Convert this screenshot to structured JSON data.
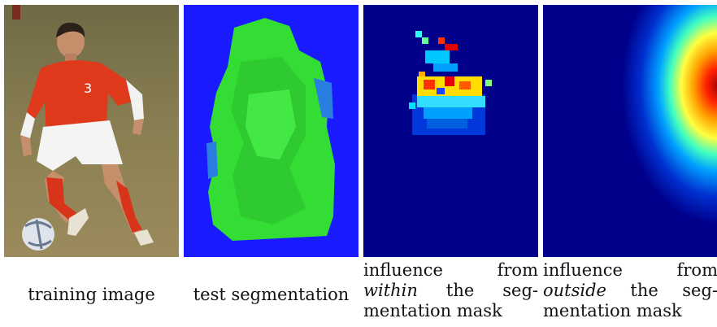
{
  "panels": [
    {
      "name": "training-image",
      "caption": "training image"
    },
    {
      "name": "test-segmentation",
      "caption": "test segmentation"
    },
    {
      "name": "influence-within",
      "caption": {
        "l1a": "influence",
        "l1b": "from",
        "l2em": "within",
        "l2a": "the",
        "l2b": "seg-",
        "l3": "mentation mask"
      }
    },
    {
      "name": "influence-outside",
      "caption": {
        "l1a": "influence",
        "l1b": "from",
        "l2em": "outside",
        "l2a": "the",
        "l2b": "seg-",
        "l3": "mentation mask"
      }
    }
  ],
  "colors": {
    "seg_background": "#1a1aff",
    "seg_foreground": "#33dd33",
    "heat_background": "#00008b"
  }
}
